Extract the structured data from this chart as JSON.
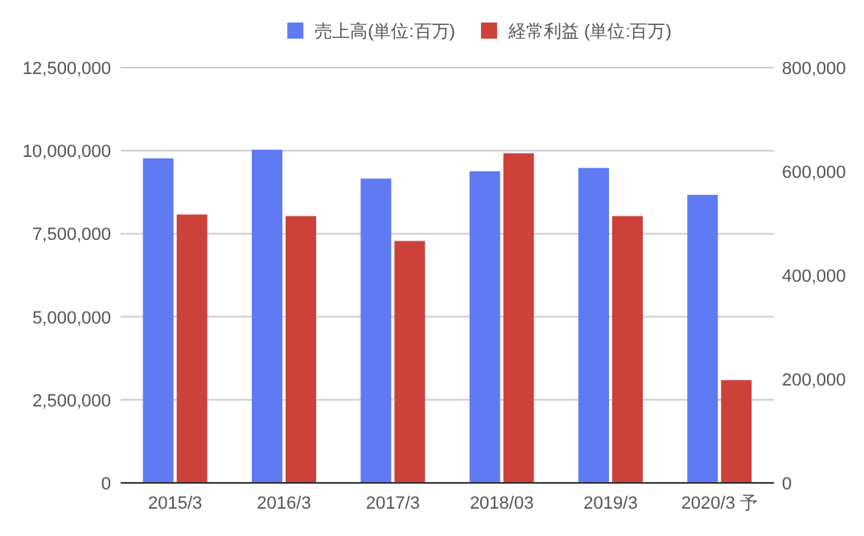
{
  "chart_data": {
    "type": "bar",
    "categories": [
      "2015/3",
      "2016/3",
      "2017/3",
      "2018/03",
      "2019/3",
      "2020/3 予"
    ],
    "series": [
      {
        "name": "売上高(単位:百万)",
        "color": "#5f7af2",
        "values": [
          9770000,
          10030000,
          9160000,
          9380000,
          9480000,
          8670000
        ]
      },
      {
        "name": "経常利益 (単位:百万)",
        "color": "#cc4139",
        "axis": "y2",
        "values": [
          517000,
          514000,
          466000,
          635000,
          514000,
          198000
        ]
      }
    ],
    "ylim": [
      0,
      12500000
    ],
    "yticks": [
      0,
      {
        "value": 2500000,
        "label": "2,500,000"
      },
      {
        "value": 5000000,
        "label": "5,000,000"
      },
      {
        "value": 7500000,
        "label": "7,500,000"
      },
      {
        "value": 10000000,
        "label": "10,000,000"
      },
      {
        "value": 12500000,
        "label": "12,500,000"
      }
    ],
    "y2lim": [
      0,
      800000
    ],
    "y2ticks": [
      0,
      {
        "value": 200000,
        "label": "200,000"
      },
      {
        "value": 400000,
        "label": "400,000"
      },
      {
        "value": 600000,
        "label": "600,000"
      },
      {
        "value": 800000,
        "label": "800,000"
      }
    ],
    "grid": "y",
    "legend": "top"
  }
}
